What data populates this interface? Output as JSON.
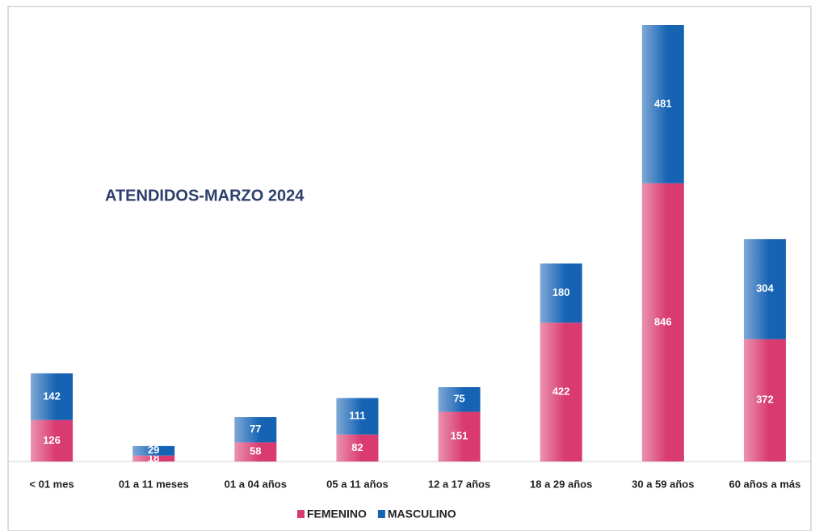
{
  "chart_data": {
    "type": "stacked_bar",
    "title": "ATENDIDOS-MARZO 2024",
    "categories": [
      "< 01 mes",
      "01 a 11 meses",
      "01 a 04 años",
      "05 a 11 años",
      "12 a 17 años",
      "18 a 29 años",
      "30 a 59 años",
      "60 años a más"
    ],
    "series": [
      {
        "name": "FEMENINO",
        "color": "#d93a6f",
        "values": [
          126,
          18,
          58,
          82,
          151,
          422,
          846,
          372
        ]
      },
      {
        "name": "MASCULINO",
        "color": "#1663b4",
        "values": [
          142,
          29,
          77,
          111,
          75,
          180,
          481,
          304
        ]
      }
    ]
  }
}
